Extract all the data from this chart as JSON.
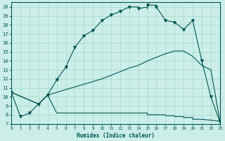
{
  "xlabel": "Humidex (Indice chaleur)",
  "background_color": "#cceee8",
  "grid_color": "#aaddcc",
  "line_color": "#005555",
  "xlim": [
    0,
    23
  ],
  "ylim": [
    7,
    20.5
  ],
  "xticks": [
    0,
    1,
    2,
    3,
    4,
    5,
    6,
    7,
    8,
    9,
    10,
    11,
    12,
    13,
    14,
    15,
    16,
    17,
    18,
    19,
    20,
    21,
    22,
    23
  ],
  "yticks": [
    7,
    8,
    9,
    10,
    11,
    12,
    13,
    14,
    15,
    16,
    17,
    18,
    19,
    20
  ],
  "curve1_x": [
    0,
    1,
    2,
    3,
    4,
    5,
    6,
    7,
    8,
    9,
    10,
    11,
    12,
    13,
    14,
    14,
    15,
    15,
    15,
    16,
    16,
    17,
    18,
    19,
    20,
    21,
    22,
    23
  ],
  "curve1_y": [
    10.5,
    7.8,
    8.2,
    9.2,
    10.2,
    11.9,
    13.3,
    15.5,
    16.8,
    17.4,
    18.5,
    19.1,
    19.5,
    20.0,
    20.0,
    19.8,
    20.0,
    19.8,
    20.2,
    20.2,
    20.0,
    18.5,
    18.3,
    17.5,
    18.5,
    14.0,
    10.0,
    7.2
  ],
  "curve2_x": [
    0,
    3,
    4,
    5,
    6,
    7,
    8,
    9,
    10,
    11,
    12,
    13,
    14,
    15,
    16,
    17,
    18,
    19,
    20,
    21,
    22,
    23
  ],
  "curve2_y": [
    10.5,
    9.2,
    10.2,
    10.5,
    10.8,
    11.1,
    11.4,
    11.7,
    12.0,
    12.4,
    12.8,
    13.2,
    13.5,
    14.0,
    14.4,
    14.8,
    15.1,
    15.1,
    14.5,
    13.5,
    13.0,
    7.3
  ],
  "curve3_x": [
    0,
    3,
    4,
    5,
    6,
    7,
    8,
    9,
    10,
    11,
    12,
    13,
    14,
    15,
    15,
    16,
    17,
    17,
    18,
    18,
    19,
    19,
    20,
    20,
    21,
    22,
    23
  ],
  "curve3_y": [
    10.5,
    9.2,
    10.2,
    8.2,
    8.2,
    8.2,
    8.2,
    8.2,
    8.2,
    8.2,
    8.2,
    8.2,
    8.2,
    8.2,
    8.0,
    8.0,
    8.0,
    7.9,
    7.9,
    7.8,
    7.8,
    7.7,
    7.7,
    7.5,
    7.5,
    7.4,
    7.3
  ],
  "markers1_x": [
    0,
    1,
    2,
    3,
    4,
    5,
    6,
    7,
    8,
    9,
    10,
    11,
    12,
    13,
    14,
    15,
    16,
    17,
    18,
    19,
    20,
    21,
    22,
    23
  ],
  "markers1_y": [
    10.5,
    7.8,
    8.2,
    9.2,
    10.2,
    11.9,
    13.3,
    15.5,
    16.8,
    17.4,
    18.5,
    19.1,
    19.5,
    20.0,
    19.8,
    20.2,
    20.0,
    18.5,
    18.3,
    17.5,
    18.5,
    14.0,
    10.0,
    7.2
  ]
}
